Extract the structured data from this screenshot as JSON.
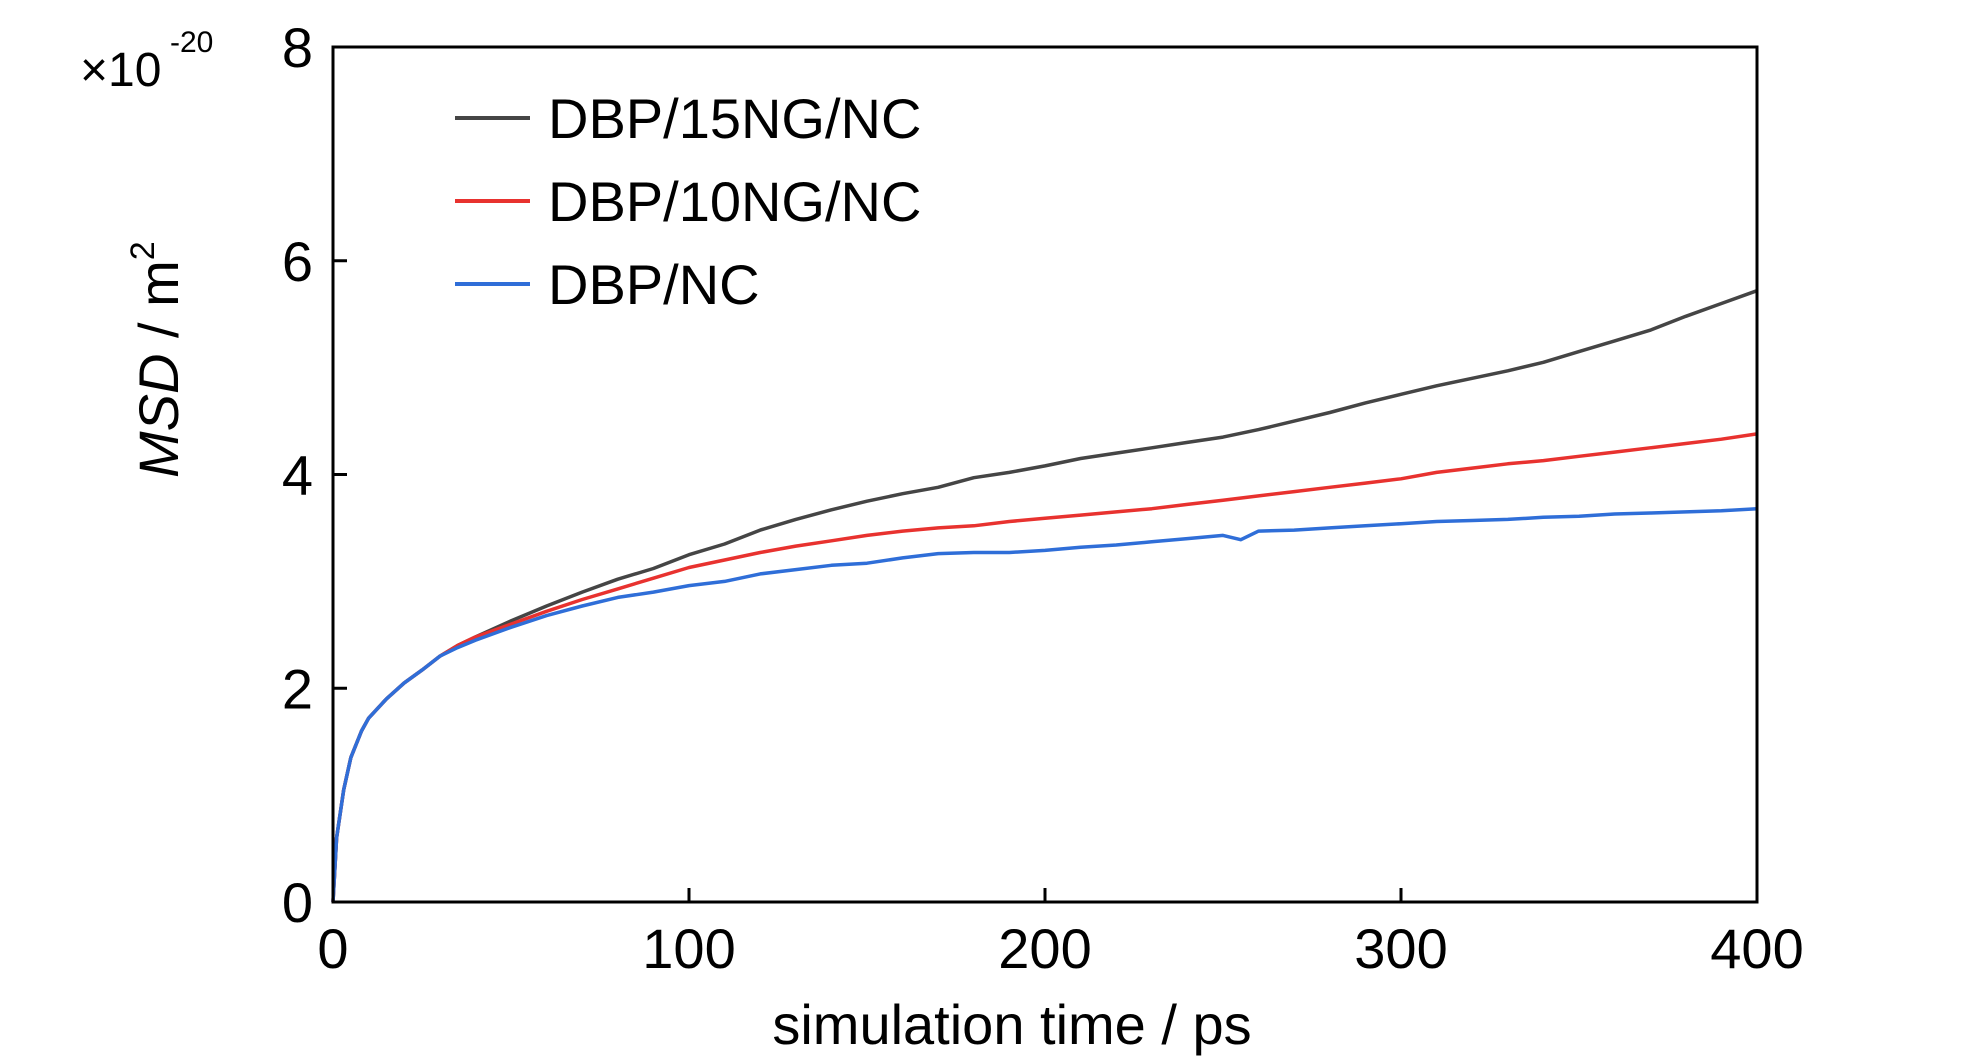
{
  "chart_data": {
    "type": "line",
    "xlabel": "simulation time / ps",
    "ylabel": "MSD / m",
    "ylabel_italic_part": "MSD",
    "ylabel_unit": " / m",
    "ylabel_superscript": "2",
    "y_multiplier": "×10",
    "y_multiplier_exponent": "-20",
    "xlim": [
      0,
      400
    ],
    "ylim": [
      0,
      8
    ],
    "xticks": [
      0,
      100,
      200,
      300,
      400
    ],
    "xtick_labels": [
      "0",
      "100",
      "200",
      "300",
      "400"
    ],
    "yticks": [
      0,
      2,
      4,
      6,
      8
    ],
    "ytick_labels": [
      "0",
      "2",
      "4",
      "6",
      "8"
    ],
    "grid": false,
    "legend_position": "top-left",
    "series": [
      {
        "name": "DBP/15NG/NC",
        "color": "#454545",
        "x": [
          0,
          1,
          3,
          5,
          8,
          10,
          15,
          20,
          25,
          30,
          35,
          40,
          50,
          60,
          70,
          80,
          90,
          100,
          110,
          120,
          130,
          140,
          150,
          160,
          170,
          180,
          190,
          200,
          210,
          220,
          230,
          240,
          250,
          260,
          270,
          280,
          290,
          300,
          310,
          320,
          330,
          340,
          350,
          360,
          370,
          380,
          390,
          400
        ],
        "values": [
          0,
          0.6,
          1.05,
          1.35,
          1.6,
          1.72,
          1.9,
          2.05,
          2.17,
          2.3,
          2.4,
          2.48,
          2.63,
          2.77,
          2.9,
          3.02,
          3.12,
          3.25,
          3.35,
          3.48,
          3.58,
          3.67,
          3.75,
          3.82,
          3.88,
          3.97,
          4.02,
          4.08,
          4.15,
          4.2,
          4.25,
          4.3,
          4.35,
          4.42,
          4.5,
          4.58,
          4.67,
          4.75,
          4.83,
          4.9,
          4.97,
          5.05,
          5.15,
          5.25,
          5.35,
          5.48,
          5.6,
          5.72
        ]
      },
      {
        "name": "DBP/10NG/NC",
        "color": "#e8322f",
        "x": [
          0,
          1,
          3,
          5,
          8,
          10,
          15,
          20,
          25,
          30,
          35,
          40,
          50,
          60,
          70,
          80,
          90,
          100,
          110,
          120,
          130,
          140,
          150,
          160,
          170,
          180,
          190,
          200,
          210,
          220,
          230,
          240,
          250,
          260,
          270,
          280,
          290,
          300,
          310,
          320,
          330,
          340,
          350,
          360,
          370,
          380,
          390,
          400
        ],
        "values": [
          0,
          0.6,
          1.05,
          1.35,
          1.6,
          1.72,
          1.9,
          2.05,
          2.17,
          2.3,
          2.4,
          2.48,
          2.6,
          2.72,
          2.83,
          2.93,
          3.03,
          3.13,
          3.2,
          3.27,
          3.33,
          3.38,
          3.43,
          3.47,
          3.5,
          3.52,
          3.56,
          3.59,
          3.62,
          3.65,
          3.68,
          3.72,
          3.76,
          3.8,
          3.84,
          3.88,
          3.92,
          3.96,
          4.02,
          4.06,
          4.1,
          4.13,
          4.17,
          4.21,
          4.25,
          4.29,
          4.33,
          4.38
        ]
      },
      {
        "name": "DBP/NC",
        "color": "#2f6ed8",
        "x": [
          0,
          1,
          3,
          5,
          8,
          10,
          15,
          20,
          25,
          30,
          35,
          40,
          50,
          60,
          70,
          80,
          90,
          100,
          110,
          120,
          130,
          140,
          150,
          160,
          170,
          180,
          190,
          200,
          210,
          220,
          230,
          240,
          250,
          255,
          260,
          270,
          280,
          290,
          300,
          310,
          320,
          330,
          340,
          350,
          360,
          370,
          380,
          390,
          400
        ],
        "values": [
          0,
          0.6,
          1.05,
          1.35,
          1.6,
          1.72,
          1.9,
          2.05,
          2.17,
          2.3,
          2.38,
          2.45,
          2.57,
          2.68,
          2.77,
          2.85,
          2.9,
          2.96,
          3.0,
          3.07,
          3.11,
          3.15,
          3.17,
          3.22,
          3.26,
          3.27,
          3.27,
          3.29,
          3.32,
          3.34,
          3.37,
          3.4,
          3.43,
          3.39,
          3.47,
          3.48,
          3.5,
          3.52,
          3.54,
          3.56,
          3.57,
          3.58,
          3.6,
          3.61,
          3.63,
          3.64,
          3.65,
          3.66,
          3.68
        ]
      }
    ]
  }
}
